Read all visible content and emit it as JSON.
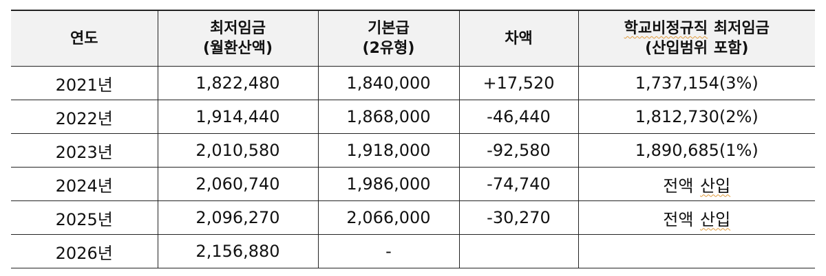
{
  "table": {
    "headers": [
      {
        "line1": "연도",
        "line2": ""
      },
      {
        "line1": "최저임금",
        "line2": "(월환산액)"
      },
      {
        "line1": "기본급",
        "line2": "(2유형)"
      },
      {
        "line1": "차액",
        "line2": ""
      },
      {
        "line1a": "학교비정규직",
        "line1b": "최저임금",
        "line2a": "(산입범위",
        "line2b": "포함)"
      }
    ],
    "rows": [
      {
        "year": "2021년",
        "min_wage": "1,822,480",
        "base_pay": "1,840,000",
        "diff": "+17,520",
        "school": "1,737,154(3%)"
      },
      {
        "year": "2022년",
        "min_wage": "1,914,440",
        "base_pay": "1,868,000",
        "diff": "-46,440",
        "school": "1,812,730(2%)"
      },
      {
        "year": "2023년",
        "min_wage": "2,010,580",
        "base_pay": "1,918,000",
        "diff": "-92,580",
        "school": "1,890,685(1%)"
      },
      {
        "year": "2024년",
        "min_wage": "2,060,740",
        "base_pay": "1,986,000",
        "diff": "-74,740",
        "school_a": "전액",
        "school_b": "산입"
      },
      {
        "year": "2025년",
        "min_wage": "2,096,270",
        "base_pay": "2,066,000",
        "diff": "-30,270",
        "school_a": "전액",
        "school_b": "산입"
      },
      {
        "year": "2026년",
        "min_wage": "2,156,880",
        "base_pay": "-",
        "diff": "",
        "school": ""
      }
    ]
  }
}
